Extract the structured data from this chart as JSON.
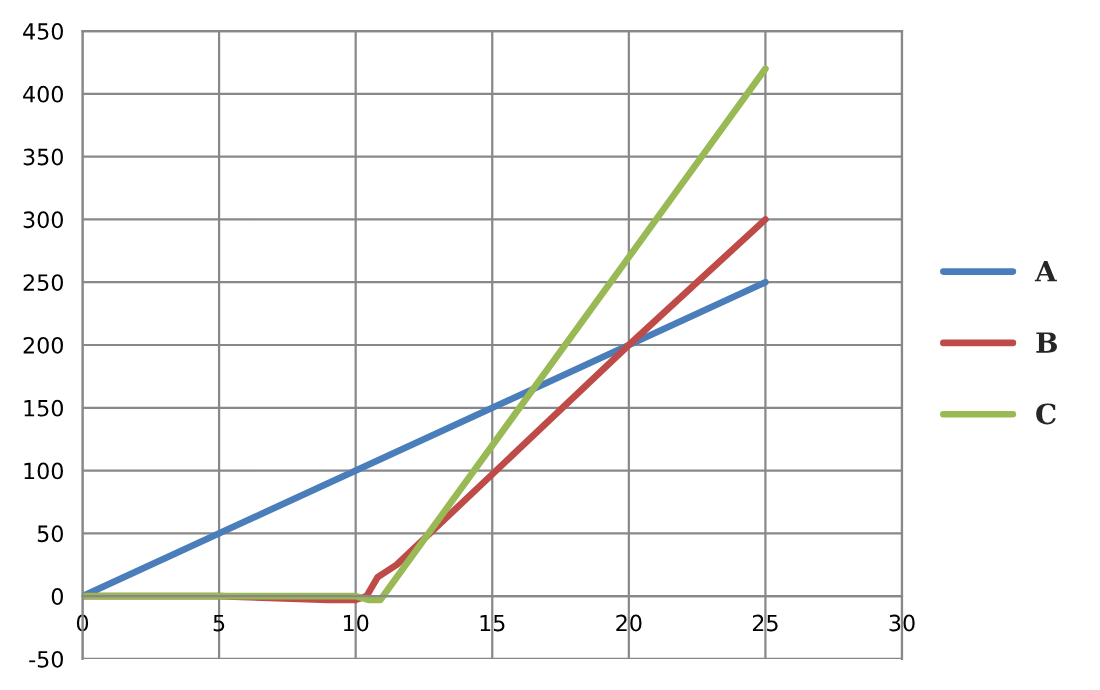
{
  "chart_data": {
    "type": "line",
    "xlim": [
      0,
      30
    ],
    "xticks": [
      0,
      5,
      10,
      15,
      20,
      25,
      30
    ],
    "ylim": [
      -50,
      450
    ],
    "yticks": [
      -50,
      0,
      50,
      100,
      150,
      200,
      250,
      300,
      350,
      400,
      450
    ],
    "grid": true,
    "legend": "right",
    "marker": "none",
    "line_style": "solid",
    "series": [
      {
        "name": "A",
        "color": "#4a7ebb",
        "x": [
          0,
          25
        ],
        "values": [
          0,
          250
        ]
      },
      {
        "name": "B",
        "color": "#be4b48",
        "x": [
          0,
          5,
          9,
          10,
          10.4,
          10.8,
          11.5,
          20,
          25
        ],
        "values": [
          0,
          0,
          -3,
          -3,
          0,
          15,
          25,
          200,
          300
        ]
      },
      {
        "name": "C",
        "color": "#98b954",
        "x": [
          0,
          5,
          10,
          10.5,
          10.9,
          20,
          25
        ],
        "values": [
          0,
          0,
          0,
          -3,
          -3,
          270,
          420
        ]
      }
    ]
  }
}
